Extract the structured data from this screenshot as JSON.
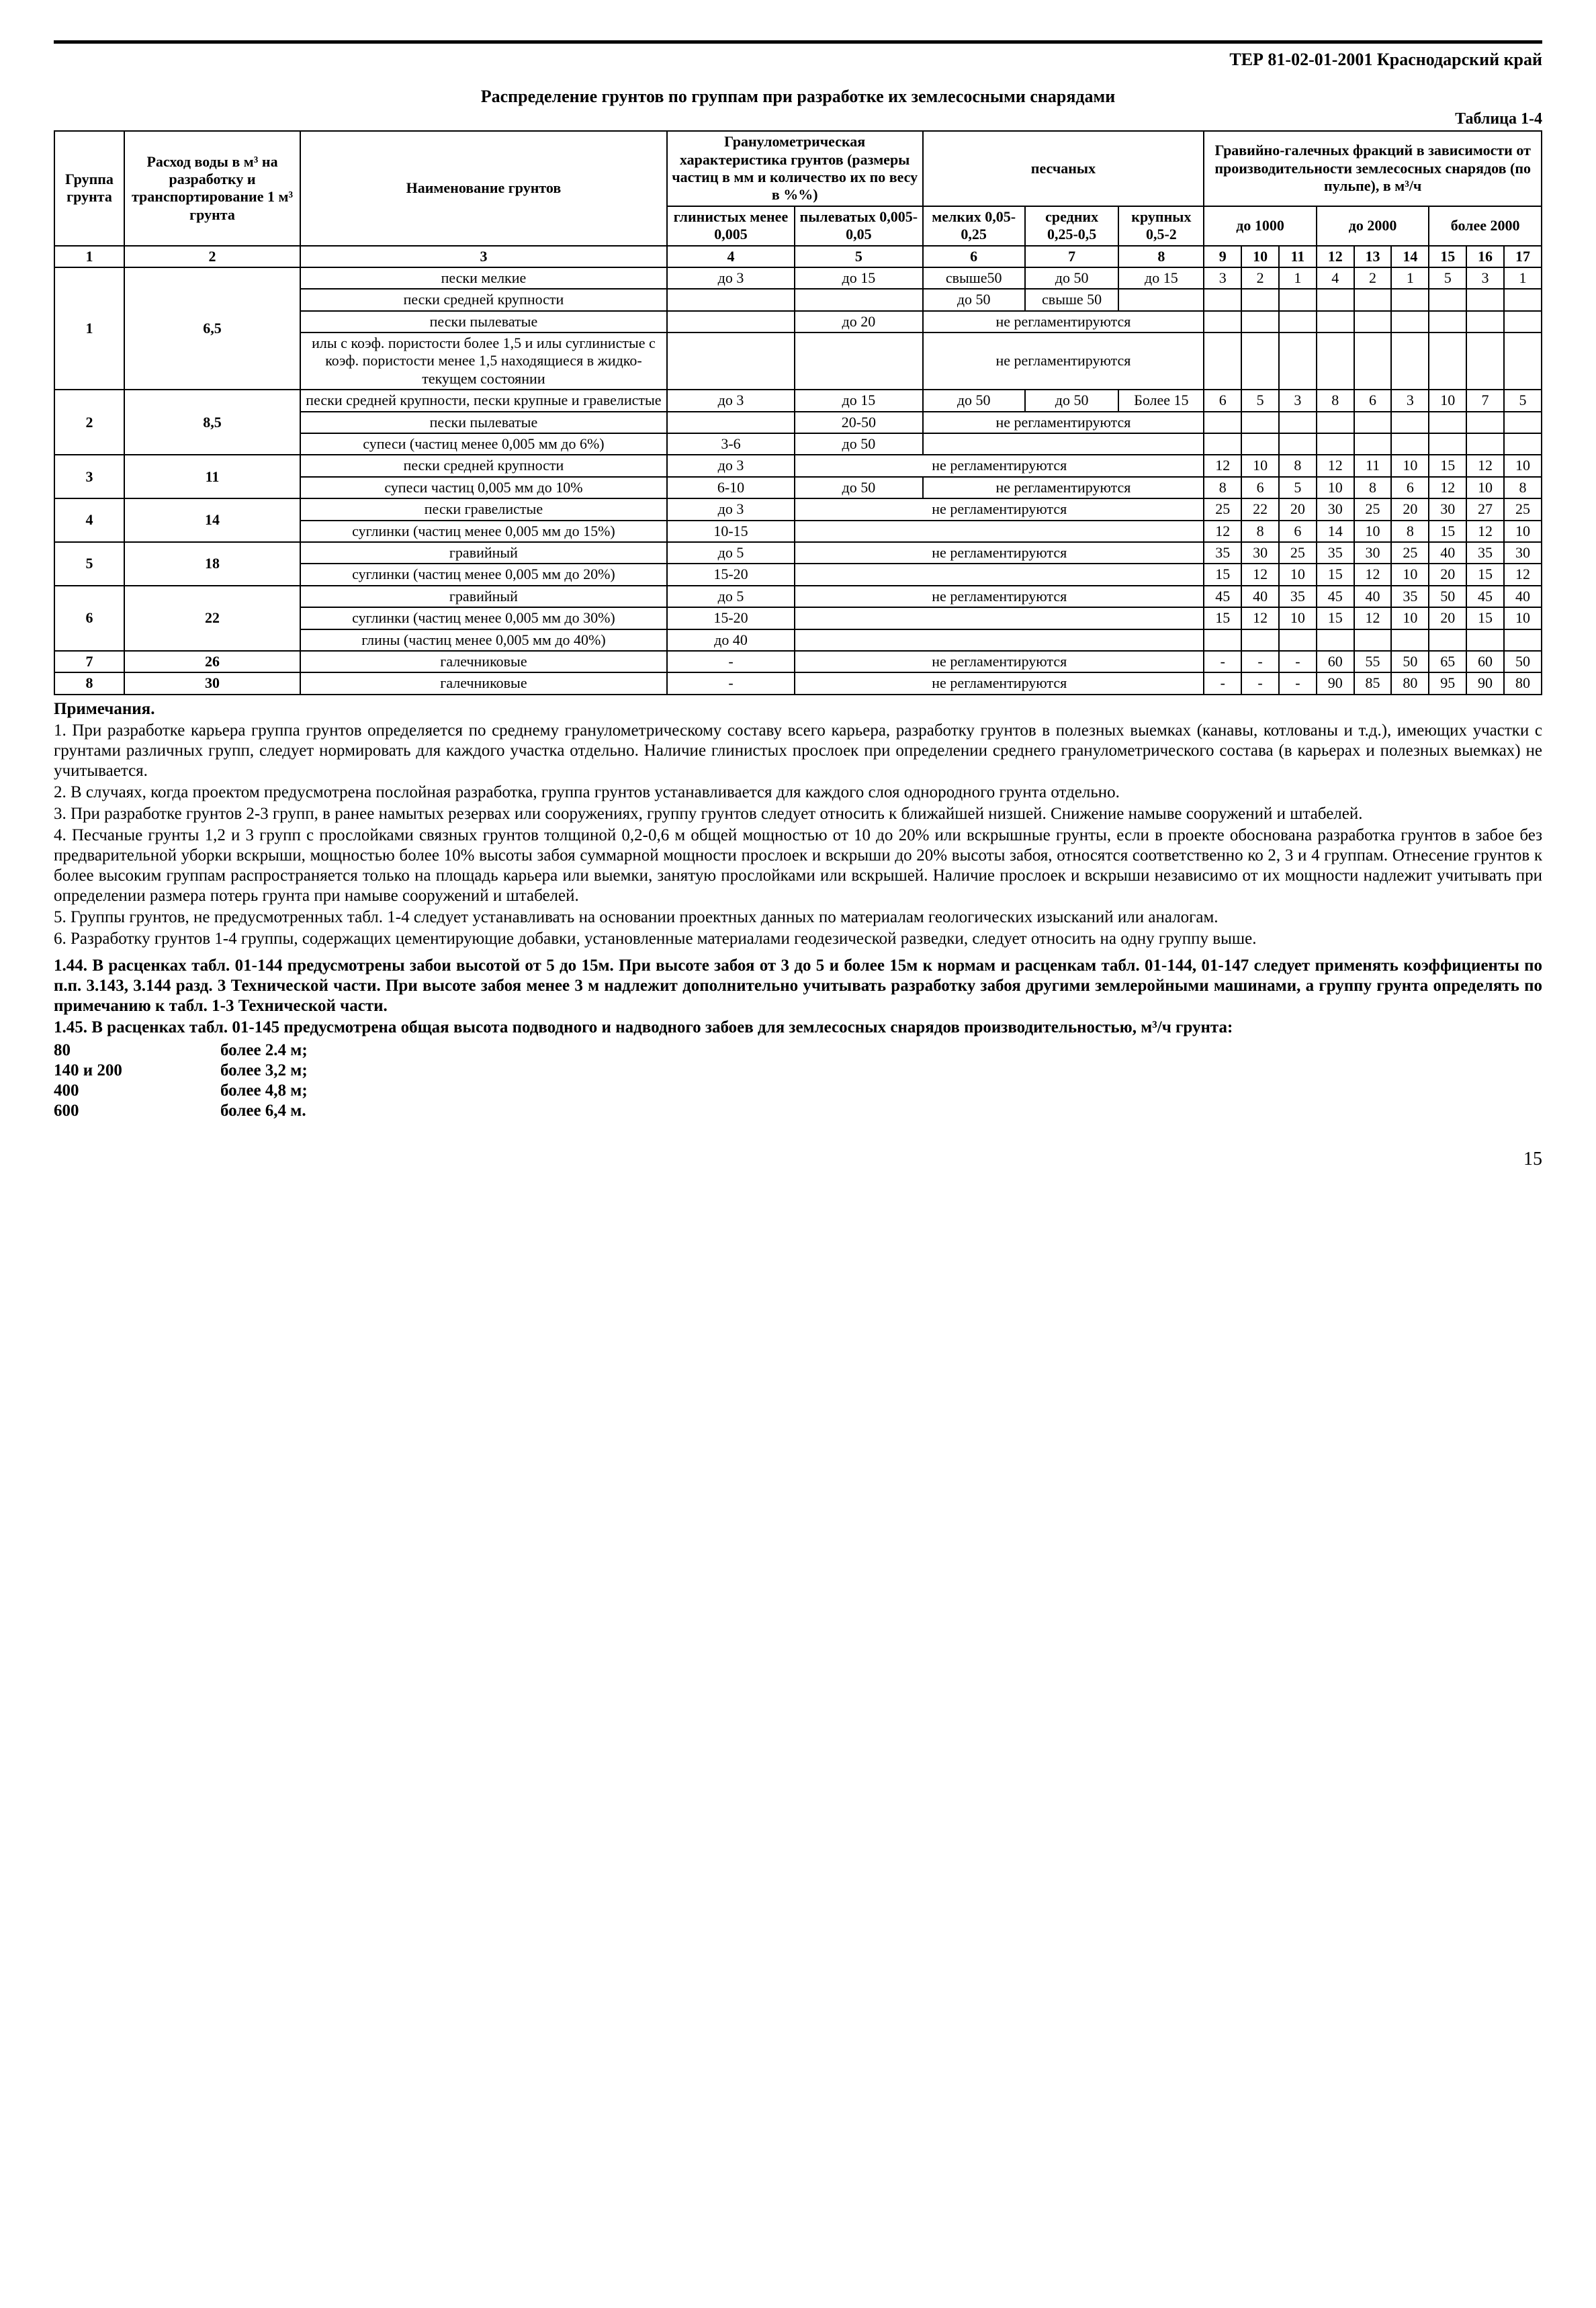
{
  "header": "ТЕР 81-02-01-2001  Краснодарский край",
  "title": "Распределение грунтов по группам при разработке их землесосными снарядами",
  "table_label": "Таблица 1-4",
  "columns": {
    "c1": "Группа грунта",
    "c2": "Расход воды в м³ на разработку и транспортирование 1 м³ грунта",
    "c3": "Наименование грунтов",
    "granulo_header": "Гранулометрическая характеристика грунтов (размеры частиц в мм и количество их по весу в %%)",
    "sand_header": "песчаных",
    "gravel_header": "Гравийно-галечных фракций в зависимости от производительности землесосных снарядов (по пульпе), в м³/ч",
    "c4": "глинистых менее 0,005",
    "c5": "пылеватых 0,005-0,05",
    "c6": "мелких 0,05-0,25",
    "c7": "средних 0,25-0,5",
    "c8": "крупных 0,5-2",
    "g_to1000": "до 1000",
    "g_to2000": "до 2000",
    "g_more2000": "более 2000"
  },
  "col_index": [
    "1",
    "2",
    "3",
    "4",
    "5",
    "6",
    "7",
    "8",
    "9",
    "10",
    "11",
    "12",
    "13",
    "14",
    "15",
    "16",
    "17"
  ],
  "rows": [
    {
      "g": "1",
      "q": "6,5",
      "sub": [
        {
          "name": "пески мелкие",
          "c4": "до 3",
          "c5": "до 15",
          "c6": "свыше50",
          "c7": "до 50",
          "c8": "до 15",
          "v": [
            "3",
            "2",
            "1",
            "4",
            "2",
            "1",
            "5",
            "3",
            "1"
          ]
        },
        {
          "name": "пески средней крупности",
          "c4": "",
          "c5": "",
          "c6": "до 50",
          "c7": "свыше 50",
          "c8": "",
          "v": [
            "",
            "",
            "",
            "",
            "",
            "",
            "",
            "",
            ""
          ]
        },
        {
          "name": "пески пылеватые",
          "c4": "",
          "c5": "до 20",
          "c678": "не регламентируются",
          "v": [
            "",
            "",
            "",
            "",
            "",
            "",
            "",
            "",
            ""
          ]
        },
        {
          "name": "илы с коэф. пористости более 1,5 и илы суглинистые с коэф. пористости менее 1,5 находящиеся в жидко-текущем состоянии",
          "c4": "",
          "c5": "",
          "c678": "не регламентируются",
          "v": [
            "",
            "",
            "",
            "",
            "",
            "",
            "",
            "",
            ""
          ]
        }
      ]
    },
    {
      "g": "2",
      "q": "8,5",
      "sub": [
        {
          "name": "пески средней крупности, пески крупные и гравелистые",
          "c4": "до 3",
          "c5": "до 15",
          "c6": "до 50",
          "c7": "до 50",
          "c8": "Более 15",
          "v": [
            "6",
            "5",
            "3",
            "8",
            "6",
            "3",
            "10",
            "7",
            "5"
          ]
        },
        {
          "name": "пески пылеватые",
          "c4": "",
          "c5": "20-50",
          "c678": "не регламентируются",
          "v": [
            "",
            "",
            "",
            "",
            "",
            "",
            "",
            "",
            ""
          ]
        },
        {
          "name": "супеси (частиц менее 0,005 мм до 6%)",
          "c4": "3-6",
          "c5": "до 50",
          "c678": "",
          "v": [
            "",
            "",
            "",
            "",
            "",
            "",
            "",
            "",
            ""
          ]
        }
      ]
    },
    {
      "g": "3",
      "q": "11",
      "sub": [
        {
          "name": "пески средней крупности",
          "c4": "до 3",
          "c5678": "не регламентируются",
          "v": [
            "12",
            "10",
            "8",
            "12",
            "11",
            "10",
            "15",
            "12",
            "10"
          ]
        },
        {
          "name": "супеси частиц 0,005 мм до 10%",
          "c4": "6-10",
          "c5": "до 50",
          "c678": "не регламентируются",
          "v": [
            "8",
            "6",
            "5",
            "10",
            "8",
            "6",
            "12",
            "10",
            "8"
          ]
        }
      ]
    },
    {
      "g": "4",
      "q": "14",
      "sub": [
        {
          "name": "пески гравелистые",
          "c4": "до 3",
          "c5678": "не регламентируются",
          "v": [
            "25",
            "22",
            "20",
            "30",
            "25",
            "20",
            "30",
            "27",
            "25"
          ]
        },
        {
          "name": "суглинки (частиц менее 0,005 мм до 15%)",
          "c4": "10-15",
          "c5678": "",
          "v": [
            "12",
            "8",
            "6",
            "14",
            "10",
            "8",
            "15",
            "12",
            "10"
          ]
        }
      ]
    },
    {
      "g": "5",
      "q": "18",
      "sub": [
        {
          "name": "гравийный",
          "c4": "до 5",
          "c5678": "не регламентируются",
          "v": [
            "35",
            "30",
            "25",
            "35",
            "30",
            "25",
            "40",
            "35",
            "30"
          ]
        },
        {
          "name": "суглинки (частиц менее 0,005 мм до 20%)",
          "c4": "15-20",
          "c5678": "",
          "v": [
            "15",
            "12",
            "10",
            "15",
            "12",
            "10",
            "20",
            "15",
            "12"
          ]
        }
      ]
    },
    {
      "g": "6",
      "q": "22",
      "sub": [
        {
          "name": "гравийный",
          "c4": "до 5",
          "c5678": "не регламентируются",
          "v": [
            "45",
            "40",
            "35",
            "45",
            "40",
            "35",
            "50",
            "45",
            "40"
          ]
        },
        {
          "name": "суглинки (частиц менее 0,005 мм до 30%)",
          "c4": "15-20",
          "c5678": "",
          "v": [
            "15",
            "12",
            "10",
            "15",
            "12",
            "10",
            "20",
            "15",
            "10"
          ]
        },
        {
          "name": "глины (частиц менее 0,005 мм до 40%)",
          "c4": "до 40",
          "c5678": "",
          "v": [
            "",
            "",
            "",
            "",
            "",
            "",
            "",
            "",
            ""
          ]
        }
      ]
    },
    {
      "g": "7",
      "q": "26",
      "sub": [
        {
          "name": "галечниковые",
          "c4": "-",
          "c5678": "не регламентируются",
          "v": [
            "-",
            "-",
            "-",
            "60",
            "55",
            "50",
            "65",
            "60",
            "50"
          ]
        }
      ]
    },
    {
      "g": "8",
      "q": "30",
      "sub": [
        {
          "name": "галечниковые",
          "c4": "-",
          "c5678": "не регламентируются",
          "v": [
            "-",
            "-",
            "-",
            "90",
            "85",
            "80",
            "95",
            "90",
            "80"
          ]
        }
      ]
    }
  ],
  "notes_title": "Примечания.",
  "notes": [
    "1.   При разработке карьера группа грунтов определяется по среднему гранулометрическому составу всего карьера, разработку грунтов в полезных выемках (канавы, котлованы и т.д.), имеющих участки с грунтами различных групп, следует нормировать для каждого участка отдельно. Наличие глинистых прослоек при определении среднего гранулометрического состава (в карьерах и полезных выемках) не учитывается.",
    "2.   В случаях, когда проектом предусмотрена послойная разработка, группа грунтов устанавливается для каждого слоя однородного грунта отдельно.",
    "3.   При разработке грунтов 2-3 групп, в ранее намытых резервах или сооружениях, группу грунтов следует относить к ближайшей низшей. Снижение намыве сооружений и штабелей.",
    "4.   Песчаные грунты 1,2 и 3 групп с прослойками связных грунтов толщиной 0,2-0,6 м общей мощностью от 10 до 20% или вскрышные грунты, если в проекте обоснована разработка грунтов в забое без предварительной уборки вскрыши, мощностью более 10% высоты забоя суммарной мощности прослоек и вскрыши до 20% высоты забоя, относятся соответственно ко 2, 3 и 4 группам. Отнесение грунтов к более высоким группам распространяется только на площадь карьера или выемки, занятую прослойками или вскрышей. Наличие прослоек и вскрыши независимо от их мощности надлежит учитывать при определении размера потерь грунта при намыве сооружений и штабелей.",
    "5.   Группы грунтов, не предусмотренных табл. 1-4 следует устанавливать на основании проектных данных по материалам геологических изысканий или аналогам.",
    "6.   Разработку грунтов 1-4 группы, содержащих цементирующие добавки, установленные материалами геодезической разведки, следует относить на одну группу выше."
  ],
  "para144": "1.44. В расценках табл. 01-144 предусмотрены забои высотой от 5 до 15м. При высоте забоя от 3 до 5 и более 15м к нормам и расценкам табл. 01-144, 01-147 следует применять коэффициенты по п.п. 3.143, 3.144 разд. 3 Технической части. При высоте забоя менее 3 м надлежит дополнительно учитывать разработку забоя другими землеройными машинами, а группу грунта определять по примечанию к табл. 1-3 Технической части.",
  "para145": "1.45. В расценках табл. 01-145 предусмотрена общая высота подводного и надводного забоев для землесосных снарядов производительностью, м³/ч грунта:",
  "depths": [
    {
      "a": "80",
      "b": "более 2.4 м;"
    },
    {
      "a": "140 и 200",
      "b": "более 3,2 м;"
    },
    {
      "a": "400",
      "b": "более 4,8 м;"
    },
    {
      "a": "600",
      "b": "более 6,4 м."
    }
  ],
  "page_number": "15"
}
